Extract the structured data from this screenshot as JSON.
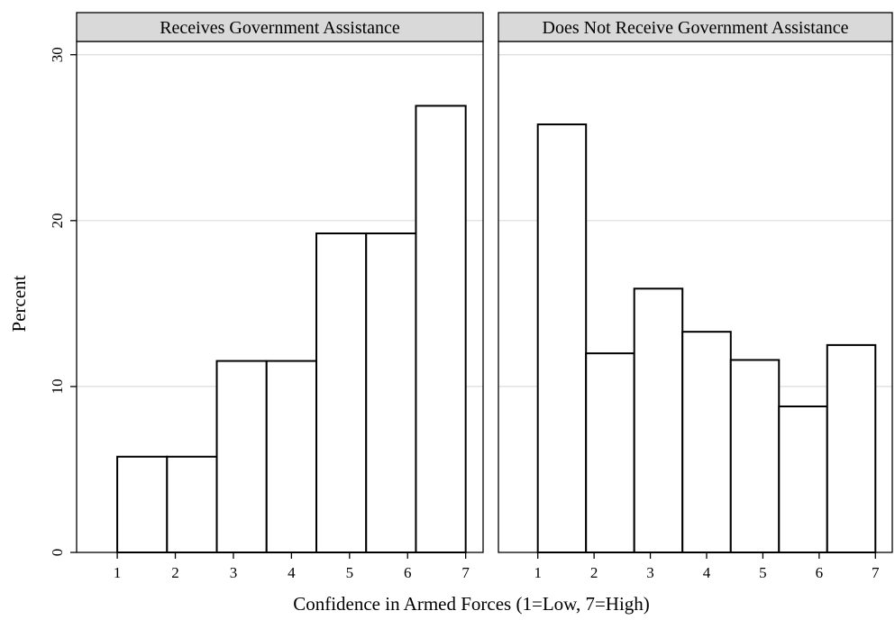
{
  "chart_data": {
    "type": "bar",
    "subtype": "histogram",
    "xlabel": "Confidence in Armed Forces (1=Low, 7=High)",
    "ylabel": "Percent",
    "ylim": [
      0,
      30.8
    ],
    "xlim": [
      0.3,
      7.3
    ],
    "yticks": [
      0,
      10,
      20,
      30
    ],
    "xticks": [
      1,
      2,
      3,
      4,
      5,
      6,
      7
    ],
    "grid": true,
    "bin_edges": [
      1.0,
      1.857,
      2.714,
      3.571,
      4.429,
      5.286,
      6.143,
      7.0
    ],
    "panels": [
      {
        "title": "Receives Government Assistance",
        "values": [
          5.77,
          5.77,
          11.54,
          11.54,
          19.23,
          19.23,
          26.92
        ]
      },
      {
        "title": "Does Not Receive Government Assistance",
        "values": [
          25.8,
          12.0,
          15.9,
          13.3,
          11.6,
          8.8,
          12.5
        ]
      }
    ]
  }
}
